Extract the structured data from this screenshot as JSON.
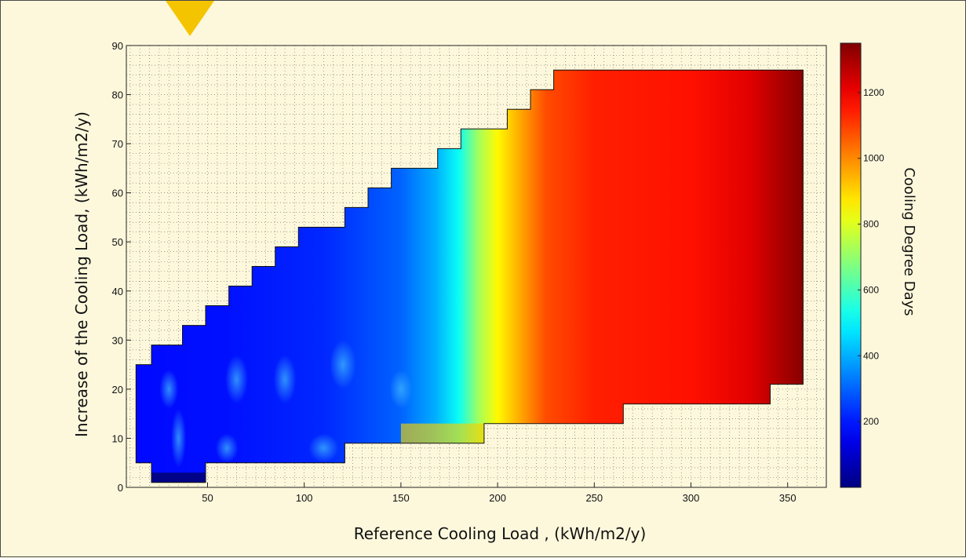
{
  "chart_data": {
    "type": "heatmap",
    "xlabel": "Reference Cooling Load , (kWh/m2/y)",
    "ylabel": "Increase of the Cooling Load, (kWh/m2/y)",
    "colorbar_label": "Cooling Degree Days",
    "xlim": [
      8,
      370
    ],
    "ylim": [
      0,
      90
    ],
    "x_ticks": [
      50,
      100,
      150,
      200,
      250,
      300,
      350
    ],
    "y_ticks": [
      0,
      10,
      20,
      30,
      40,
      50,
      60,
      70,
      80,
      90
    ],
    "colorbar_range": [
      0,
      1350
    ],
    "colorbar_ticks": [
      200,
      400,
      600,
      800,
      1000,
      1200
    ],
    "colormap": "jet",
    "grid": true,
    "colors": {
      "background": "#fdf8dc",
      "grid": "#333333",
      "low": "#00008f",
      "high": "#800000"
    },
    "domain_boundary": [
      [
        13,
        5
      ],
      [
        13,
        25
      ],
      [
        21,
        25
      ],
      [
        21,
        29
      ],
      [
        37,
        29
      ],
      [
        37,
        33
      ],
      [
        49,
        33
      ],
      [
        49,
        37
      ],
      [
        61,
        37
      ],
      [
        61,
        41
      ],
      [
        73,
        41
      ],
      [
        73,
        45
      ],
      [
        85,
        45
      ],
      [
        85,
        49
      ],
      [
        97,
        49
      ],
      [
        97,
        53
      ],
      [
        121,
        53
      ],
      [
        121,
        57
      ],
      [
        133,
        57
      ],
      [
        133,
        61
      ],
      [
        145,
        61
      ],
      [
        145,
        65
      ],
      [
        169,
        65
      ],
      [
        169,
        69
      ],
      [
        181,
        69
      ],
      [
        181,
        73
      ],
      [
        205,
        73
      ],
      [
        205,
        77
      ],
      [
        217,
        77
      ],
      [
        217,
        81
      ],
      [
        229,
        81
      ],
      [
        229,
        85
      ],
      [
        358,
        85
      ],
      [
        358,
        21
      ],
      [
        341,
        21
      ],
      [
        341,
        17
      ],
      [
        265,
        17
      ],
      [
        265,
        13
      ],
      [
        193,
        13
      ],
      [
        193,
        9
      ],
      [
        121,
        9
      ],
      [
        121,
        5
      ],
      [
        49,
        5
      ],
      [
        49,
        1
      ],
      [
        21,
        1
      ],
      [
        21,
        5
      ]
    ],
    "cdd_profile": [
      {
        "x": 13,
        "value": 180
      },
      {
        "x": 60,
        "value": 190
      },
      {
        "x": 110,
        "value": 220
      },
      {
        "x": 150,
        "value": 300
      },
      {
        "x": 168,
        "value": 400
      },
      {
        "x": 180,
        "value": 520
      },
      {
        "x": 190,
        "value": 720
      },
      {
        "x": 200,
        "value": 850
      },
      {
        "x": 212,
        "value": 960
      },
      {
        "x": 225,
        "value": 1080
      },
      {
        "x": 250,
        "value": 1140
      },
      {
        "x": 300,
        "value": 1160
      },
      {
        "x": 330,
        "value": 1220
      },
      {
        "x": 358,
        "value": 1340
      }
    ]
  }
}
